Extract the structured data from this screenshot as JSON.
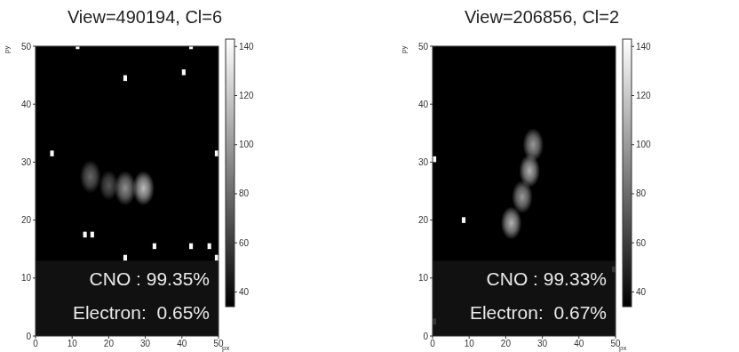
{
  "chart_data": [
    {
      "type": "image",
      "title": "View=490194, Cl=6",
      "x_label": "px",
      "y_label": "py",
      "xlim": [
        0,
        50
      ],
      "ylim": [
        0,
        50
      ],
      "xticks": [
        0,
        10,
        20,
        30,
        40,
        50
      ],
      "yticks": [
        0,
        10,
        20,
        30,
        40,
        50
      ],
      "tick_labels": true,
      "colorbar": {
        "range": [
          34,
          143
        ],
        "ticks": [
          40,
          60,
          80,
          100,
          120,
          140
        ]
      },
      "spots": [
        {
          "x": 15,
          "y": 27.5,
          "size": 2.2,
          "intensity": 78
        },
        {
          "x": 20,
          "y": 26,
          "size": 2,
          "intensity": 70
        },
        {
          "x": 24.5,
          "y": 25.5,
          "size": 2.3,
          "intensity": 95
        },
        {
          "x": 29.5,
          "y": 25.5,
          "size": 2.3,
          "intensity": 115
        }
      ],
      "hot_pixels": [
        {
          "x": 4,
          "y": 31,
          "intensity": 140
        },
        {
          "x": 11,
          "y": 49.5,
          "intensity": 140
        },
        {
          "x": 24,
          "y": 44,
          "intensity": 140
        },
        {
          "x": 42,
          "y": 49.5,
          "intensity": 140
        },
        {
          "x": 40,
          "y": 45,
          "intensity": 140
        },
        {
          "x": 49,
          "y": 31,
          "intensity": 140
        },
        {
          "x": 13,
          "y": 17,
          "intensity": 140
        },
        {
          "x": 15,
          "y": 17,
          "intensity": 140
        },
        {
          "x": 32,
          "y": 15,
          "intensity": 140
        },
        {
          "x": 42,
          "y": 15,
          "intensity": 140
        },
        {
          "x": 47,
          "y": 15,
          "intensity": 140
        },
        {
          "x": 49,
          "y": 13,
          "intensity": 140
        },
        {
          "x": 24,
          "y": 13,
          "intensity": 140
        }
      ],
      "annotations": [
        "CNO : 99.35%",
        "Electron:  0.65%"
      ]
    },
    {
      "type": "image",
      "title": "View=206856, Cl=2",
      "x_label": "px",
      "y_label": "py",
      "xlim": [
        0,
        50
      ],
      "ylim": [
        0,
        50
      ],
      "xticks": [
        0,
        10,
        20,
        30,
        40,
        50
      ],
      "yticks": [
        0,
        10,
        20,
        30,
        40,
        50
      ],
      "tick_labels": true,
      "colorbar": {
        "range": [
          34,
          143
        ],
        "ticks": [
          40,
          60,
          80,
          100,
          120,
          140
        ]
      },
      "spots": [
        {
          "x": 21.5,
          "y": 19.5,
          "size": 2.2,
          "intensity": 110
        },
        {
          "x": 24.5,
          "y": 24,
          "size": 2.2,
          "intensity": 100
        },
        {
          "x": 26.5,
          "y": 28.5,
          "size": 2.2,
          "intensity": 110
        },
        {
          "x": 27.5,
          "y": 33,
          "size": 2.2,
          "intensity": 100
        }
      ],
      "hot_pixels": [
        {
          "x": 0,
          "y": 30,
          "intensity": 140
        },
        {
          "x": 8,
          "y": 19.5,
          "intensity": 140
        },
        {
          "x": 49,
          "y": 11,
          "intensity": 140
        },
        {
          "x": 0,
          "y": 2,
          "intensity": 140
        }
      ],
      "annotations": [
        "CNO : 99.33%",
        "Electron:  0.67%"
      ]
    }
  ]
}
